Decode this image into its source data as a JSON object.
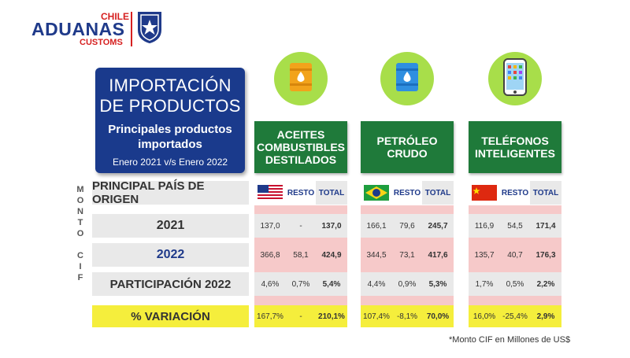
{
  "logo": {
    "aduanas": "ADUANAS",
    "chile": "CHILE",
    "customs": "CUSTOMS"
  },
  "title": {
    "line1": "IMPORTACIÓN",
    "line2": "DE PRODUCTOS",
    "line3": "Principales productos",
    "line4": "importados",
    "period": "Enero 2021 v/s Enero 2022"
  },
  "vertical_label": [
    "M",
    "O",
    "N",
    "T",
    "O",
    "",
    "C",
    "I",
    "F"
  ],
  "row_labels": {
    "origin": "PRINCIPAL PAÍS DE ORIGEN",
    "y2021": "2021",
    "y2022": "2022",
    "share": "PARTICIPACIÓN 2022",
    "variation": "% VARIACIÓN"
  },
  "col_headers": {
    "resto": "RESTO",
    "total": "TOTAL"
  },
  "products": [
    {
      "name_lines": [
        "ACEITES",
        "COMBUSTIBLES",
        "DESTILADOS"
      ],
      "icon": "oil-barrel-icon",
      "origin_flag": "usa-flag-icon",
      "y2021": [
        "137,0",
        "-",
        "137,0"
      ],
      "y2022": [
        "366,8",
        "58,1",
        "424,9"
      ],
      "share": [
        "4,6%",
        "0,7%",
        "5,4%"
      ],
      "variation": [
        "167,7%",
        "-",
        "210,1%"
      ]
    },
    {
      "name_lines": [
        "PETRÓLEO",
        "CRUDO"
      ],
      "icon": "crude-barrel-icon",
      "origin_flag": "brazil-flag-icon",
      "y2021": [
        "166,1",
        "79,6",
        "245,7"
      ],
      "y2022": [
        "344,5",
        "73,1",
        "417,6"
      ],
      "share": [
        "4,4%",
        "0,9%",
        "5,3%"
      ],
      "variation": [
        "107,4%",
        "-8,1%",
        "70,0%"
      ]
    },
    {
      "name_lines": [
        "TELÉFONOS",
        "INTELIGENTES"
      ],
      "icon": "smartphone-icon",
      "origin_flag": "china-flag-icon",
      "y2021": [
        "116,9",
        "54,5",
        "171,4"
      ],
      "y2022": [
        "135,7",
        "40,7",
        "176,3"
      ],
      "share": [
        "1,7%",
        "0,5%",
        "2,2%"
      ],
      "variation": [
        "16,0%",
        "-25,4%",
        "2,9%"
      ]
    }
  ],
  "footnote": "*Monto CIF en Millones de US$",
  "colors": {
    "navy": "#1a3a8c",
    "green": "#1f7a3a",
    "lime": "#a8de4a",
    "yellow": "#f5ee3c",
    "pink": "#f6c9c9",
    "gray": "#e9e9e9",
    "red": "#d62020"
  }
}
